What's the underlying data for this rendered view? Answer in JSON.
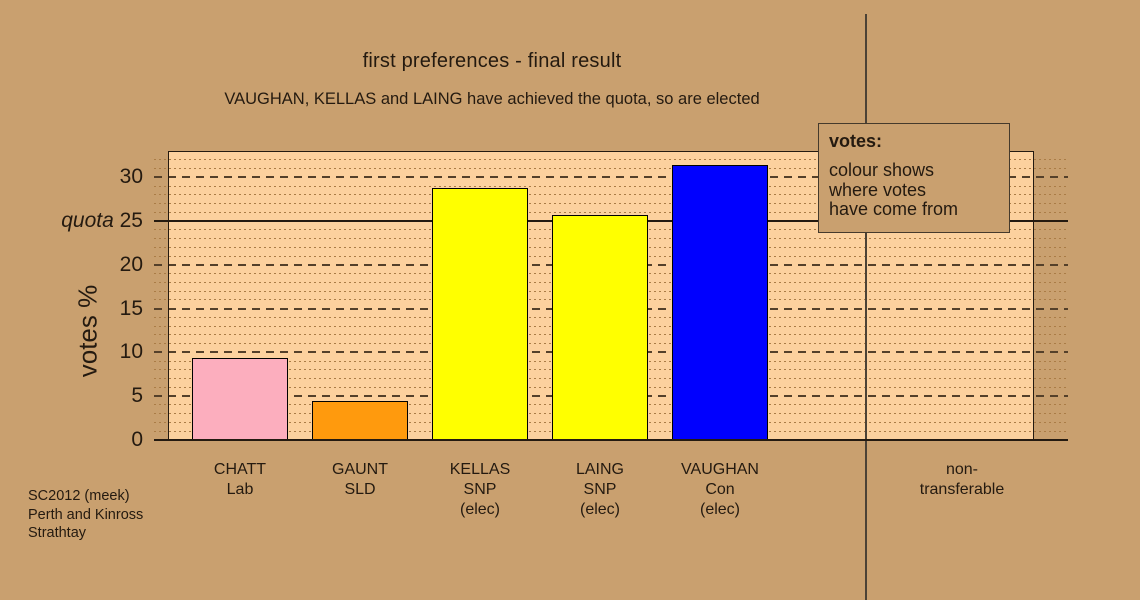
{
  "page": {
    "background": "#c9a06f",
    "plot_background": "#fcd19e"
  },
  "header": {
    "title": "first preferences - final result",
    "subtitle": "VAUGHAN, KELLAS and LAING have achieved the quota, so are elected"
  },
  "legend": {
    "title": "votes:",
    "lines": [
      "colour shows",
      "where votes",
      "have come from"
    ]
  },
  "y_axis": {
    "label": "votes %",
    "quota_label": "quota",
    "ticks": [
      0,
      5,
      10,
      15,
      20,
      25,
      30
    ]
  },
  "footer": {
    "lines": [
      "SC2012 (meek)",
      "Perth and Kinross",
      "Strathtay"
    ]
  },
  "chart_data": {
    "type": "bar",
    "title": "first preferences - final result",
    "xlabel": "",
    "ylabel": "votes %",
    "ylim": [
      0,
      33
    ],
    "grid": {
      "grid_on": true,
      "minor_step": 1,
      "major_step": 5,
      "quota_line": 25
    },
    "legend_position": "top-right",
    "categories": [
      "CHATT Lab",
      "GAUNT SLD",
      "KELLAS SNP (elec)",
      "LAING SNP (elec)",
      "VAUGHAN Con (elec)",
      "non-transferable"
    ],
    "values": [
      9.4,
      4.5,
      28.8,
      25.7,
      31.4,
      0
    ],
    "bars": [
      {
        "candidate": "CHATT",
        "party": "Lab",
        "elected": false,
        "value": 9.4,
        "color": "#fcaebe"
      },
      {
        "candidate": "GAUNT",
        "party": "SLD",
        "elected": false,
        "value": 4.5,
        "color": "#ff9a0d"
      },
      {
        "candidate": "KELLAS",
        "party": "SNP",
        "elected": true,
        "value": 28.8,
        "color": "#ffff00"
      },
      {
        "candidate": "LAING",
        "party": "SNP",
        "elected": true,
        "value": 25.7,
        "color": "#ffff00"
      },
      {
        "candidate": "VAUGHAN",
        "party": "Con",
        "elected": true,
        "value": 31.4,
        "color": "#0000ff"
      }
    ],
    "extra_category": {
      "lines": [
        "non-",
        "transferable"
      ],
      "value": 0
    },
    "elected_suffix": "(elec)"
  }
}
